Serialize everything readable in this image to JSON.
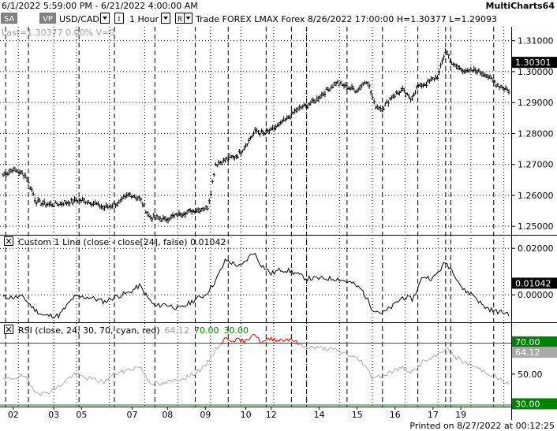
{
  "window": {
    "date_range": "6/1/2022 5:59:00 PM - 6/21/2022 4:00:00 AM",
    "app_name": "MultiCharts64",
    "printed_on": "Printed on 8/27/2022 at 00:12:25"
  },
  "toolbar": {
    "sa_button": "SA",
    "vp_button": "VP",
    "symbol": "USD/CAD",
    "interval_icon": "I",
    "interval": "1 Hour",
    "range_icon": "R",
    "info": "Trade  FOREX  LMAX  Forex  8/26/2022  17:00:00  H=1.30377  L=1.29093",
    "status": "Last=1.30377  0.00%  V=0"
  },
  "colors": {
    "price": "#000000",
    "custom": "#000000",
    "rsi_normal": "#a9a9a9",
    "rsi_overbought": "#dd0000",
    "level_line": "#008000",
    "grid": "#000000",
    "value_label_bg": "#000000",
    "level_label_bg": "#008000",
    "rsi_label_bg": "#a9a9a9"
  },
  "panels": [
    {
      "name": "price",
      "title": "",
      "current_value": "1.30301",
      "ticks": [
        "1.31000",
        "1.30000",
        "1.29000",
        "1.28000",
        "1.27000",
        "1.26000",
        "1.25000"
      ]
    },
    {
      "name": "custom",
      "close_icon": "x",
      "title": "Custom 1 Line   (close - close[24],  false)  0.01042",
      "current_value": "0.01042",
      "ticks": [
        "0.02000",
        "0.00000"
      ]
    },
    {
      "name": "rsi",
      "close_icon": "x",
      "title_prefix": "RSI   (close,  24,  30,  70,  cyan,  red)",
      "title_rsi": "64.12",
      "title_ob": "70.00",
      "title_os": "30.00",
      "current_value": "64.12",
      "ob_label": "70.00",
      "os_label": "30.00",
      "ticks": [
        "50.00"
      ]
    }
  ],
  "x_axis": [
    "02",
    "03",
    "05",
    "07",
    "08",
    "09",
    "10",
    "12",
    "14",
    "15",
    "16",
    "17",
    "19"
  ],
  "chart_data": [
    {
      "type": "line",
      "title": "USD/CAD 1 Hour",
      "ylim": [
        1.2475,
        1.3145
      ],
      "anchors": [
        [
          0,
          1.2665
        ],
        [
          0.02,
          1.2685
        ],
        [
          0.045,
          1.2665
        ],
        [
          0.065,
          1.258
        ],
        [
          0.09,
          1.257
        ],
        [
          0.12,
          1.2575
        ],
        [
          0.15,
          1.2585
        ],
        [
          0.175,
          1.2578
        ],
        [
          0.2,
          1.256
        ],
        [
          0.23,
          1.2575
        ],
        [
          0.25,
          1.2605
        ],
        [
          0.27,
          1.259
        ],
        [
          0.29,
          1.253
        ],
        [
          0.32,
          1.2522
        ],
        [
          0.35,
          1.254
        ],
        [
          0.38,
          1.2553
        ],
        [
          0.405,
          1.256
        ],
        [
          0.42,
          1.27
        ],
        [
          0.44,
          1.2715
        ],
        [
          0.465,
          1.273
        ],
        [
          0.485,
          1.2775
        ],
        [
          0.5,
          1.281
        ],
        [
          0.515,
          1.2798
        ],
        [
          0.54,
          1.282
        ],
        [
          0.56,
          1.2845
        ],
        [
          0.58,
          1.2875
        ],
        [
          0.6,
          1.289
        ],
        [
          0.62,
          1.291
        ],
        [
          0.64,
          1.294
        ],
        [
          0.66,
          1.2965
        ],
        [
          0.68,
          1.295
        ],
        [
          0.7,
          1.294
        ],
        [
          0.72,
          1.2975
        ],
        [
          0.735,
          1.289
        ],
        [
          0.75,
          1.288
        ],
        [
          0.77,
          1.292
        ],
        [
          0.79,
          1.294
        ],
        [
          0.805,
          1.291
        ],
        [
          0.82,
          1.295
        ],
        [
          0.84,
          1.2965
        ],
        [
          0.86,
          1.2985
        ],
        [
          0.875,
          1.307
        ],
        [
          0.89,
          1.302
        ],
        [
          0.905,
          1.301
        ],
        [
          0.92,
          1.3
        ],
        [
          0.935,
          1.3005
        ],
        [
          0.955,
          1.299
        ],
        [
          0.975,
          1.296
        ],
        [
          1.0,
          1.294
        ]
      ]
    },
    {
      "type": "line",
      "title": "Custom 1 Line (close - close[24], false)",
      "ylim": [
        -0.0115,
        0.0255
      ],
      "anchors": [
        [
          0,
          -0.001
        ],
        [
          0.04,
          -0.001
        ],
        [
          0.06,
          -0.006
        ],
        [
          0.08,
          -0.009
        ],
        [
          0.11,
          -0.009
        ],
        [
          0.14,
          -0.001
        ],
        [
          0.17,
          -0.001
        ],
        [
          0.2,
          -0.003
        ],
        [
          0.22,
          -0.001
        ],
        [
          0.25,
          0.001
        ],
        [
          0.27,
          0.004
        ],
        [
          0.285,
          -0.001
        ],
        [
          0.3,
          -0.005
        ],
        [
          0.32,
          -0.004
        ],
        [
          0.35,
          -0.006
        ],
        [
          0.38,
          -0.002
        ],
        [
          0.4,
          0.0
        ],
        [
          0.42,
          0.006
        ],
        [
          0.44,
          0.015
        ],
        [
          0.47,
          0.012
        ],
        [
          0.495,
          0.0185
        ],
        [
          0.51,
          0.013
        ],
        [
          0.53,
          0.009
        ],
        [
          0.55,
          0.011
        ],
        [
          0.57,
          0.01
        ],
        [
          0.6,
          0.007
        ],
        [
          0.63,
          0.007
        ],
        [
          0.66,
          0.007
        ],
        [
          0.69,
          0.005
        ],
        [
          0.71,
          0.002
        ],
        [
          0.73,
          -0.006
        ],
        [
          0.75,
          -0.008
        ],
        [
          0.77,
          -0.005
        ],
        [
          0.79,
          -0.001
        ],
        [
          0.81,
          -0.002
        ],
        [
          0.83,
          0.008
        ],
        [
          0.85,
          0.007
        ],
        [
          0.875,
          0.014
        ],
        [
          0.89,
          0.01
        ],
        [
          0.91,
          0.002
        ],
        [
          0.93,
          0.0
        ],
        [
          0.95,
          -0.005
        ],
        [
          0.97,
          -0.007
        ],
        [
          1.0,
          -0.008
        ]
      ]
    },
    {
      "type": "line",
      "title": "RSI (close, 24, 30, 70, cyan, red)",
      "ylim": [
        29,
        83
      ],
      "overbought": 70,
      "oversold": 30,
      "anchors": [
        [
          0,
          46
        ],
        [
          0.04,
          49
        ],
        [
          0.06,
          40
        ],
        [
          0.08,
          37
        ],
        [
          0.11,
          42
        ],
        [
          0.14,
          50
        ],
        [
          0.17,
          47
        ],
        [
          0.2,
          45
        ],
        [
          0.22,
          50
        ],
        [
          0.25,
          53
        ],
        [
          0.27,
          55
        ],
        [
          0.29,
          45
        ],
        [
          0.31,
          43
        ],
        [
          0.34,
          46
        ],
        [
          0.37,
          49
        ],
        [
          0.4,
          55
        ],
        [
          0.42,
          66
        ],
        [
          0.44,
          73
        ],
        [
          0.46,
          72
        ],
        [
          0.48,
          71
        ],
        [
          0.495,
          77
        ],
        [
          0.51,
          70
        ],
        [
          0.53,
          73
        ],
        [
          0.55,
          72
        ],
        [
          0.57,
          73
        ],
        [
          0.59,
          68
        ],
        [
          0.62,
          67
        ],
        [
          0.65,
          66
        ],
        [
          0.68,
          63
        ],
        [
          0.71,
          58
        ],
        [
          0.73,
          48
        ],
        [
          0.75,
          49
        ],
        [
          0.77,
          52
        ],
        [
          0.79,
          54
        ],
        [
          0.81,
          51
        ],
        [
          0.83,
          58
        ],
        [
          0.85,
          60
        ],
        [
          0.875,
          67
        ],
        [
          0.89,
          62
        ],
        [
          0.91,
          58
        ],
        [
          0.93,
          55
        ],
        [
          0.95,
          52
        ],
        [
          0.97,
          49
        ],
        [
          1.0,
          43
        ]
      ]
    }
  ]
}
